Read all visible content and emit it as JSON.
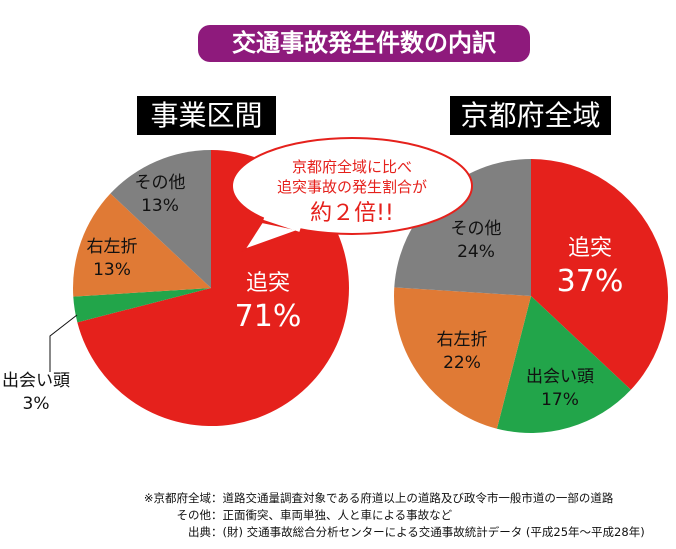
{
  "title": "交通事故発生件数の内訳",
  "chart_data": [
    {
      "type": "pie",
      "title": "事業区間",
      "categories": [
        "追突",
        "出会い頭",
        "右左折",
        "その他"
      ],
      "values": [
        71,
        3,
        13,
        13
      ],
      "labels": [
        "71%",
        "3%",
        "13%",
        "13%"
      ],
      "colors": [
        "#e5211c",
        "#22a54a",
        "#e07a35",
        "#808080"
      ]
    },
    {
      "type": "pie",
      "title": "京都府全域",
      "categories": [
        "追突",
        "出会い頭",
        "右左折",
        "その他"
      ],
      "values": [
        37,
        17,
        22,
        24
      ],
      "labels": [
        "37%",
        "17%",
        "22%",
        "24%"
      ],
      "colors": [
        "#e5211c",
        "#22a54a",
        "#e07a35",
        "#808080"
      ]
    }
  ],
  "callout": {
    "line1": "京都府全域に比べ",
    "line2": "追突事故の発生割合が",
    "line3": "約２倍!!"
  },
  "notes": [
    {
      "key": "※京都府全域",
      "value": "道路交通量調査対象である府道以上の道路及び政令市一般市道の一部の道路"
    },
    {
      "key": "その他",
      "value": "正面衝突、車両単独、人と車による事故など"
    },
    {
      "key": "出典",
      "value": "(財) 交通事故総合分析センターによる交通事故統計データ (平成25年～平成28年)"
    }
  ]
}
